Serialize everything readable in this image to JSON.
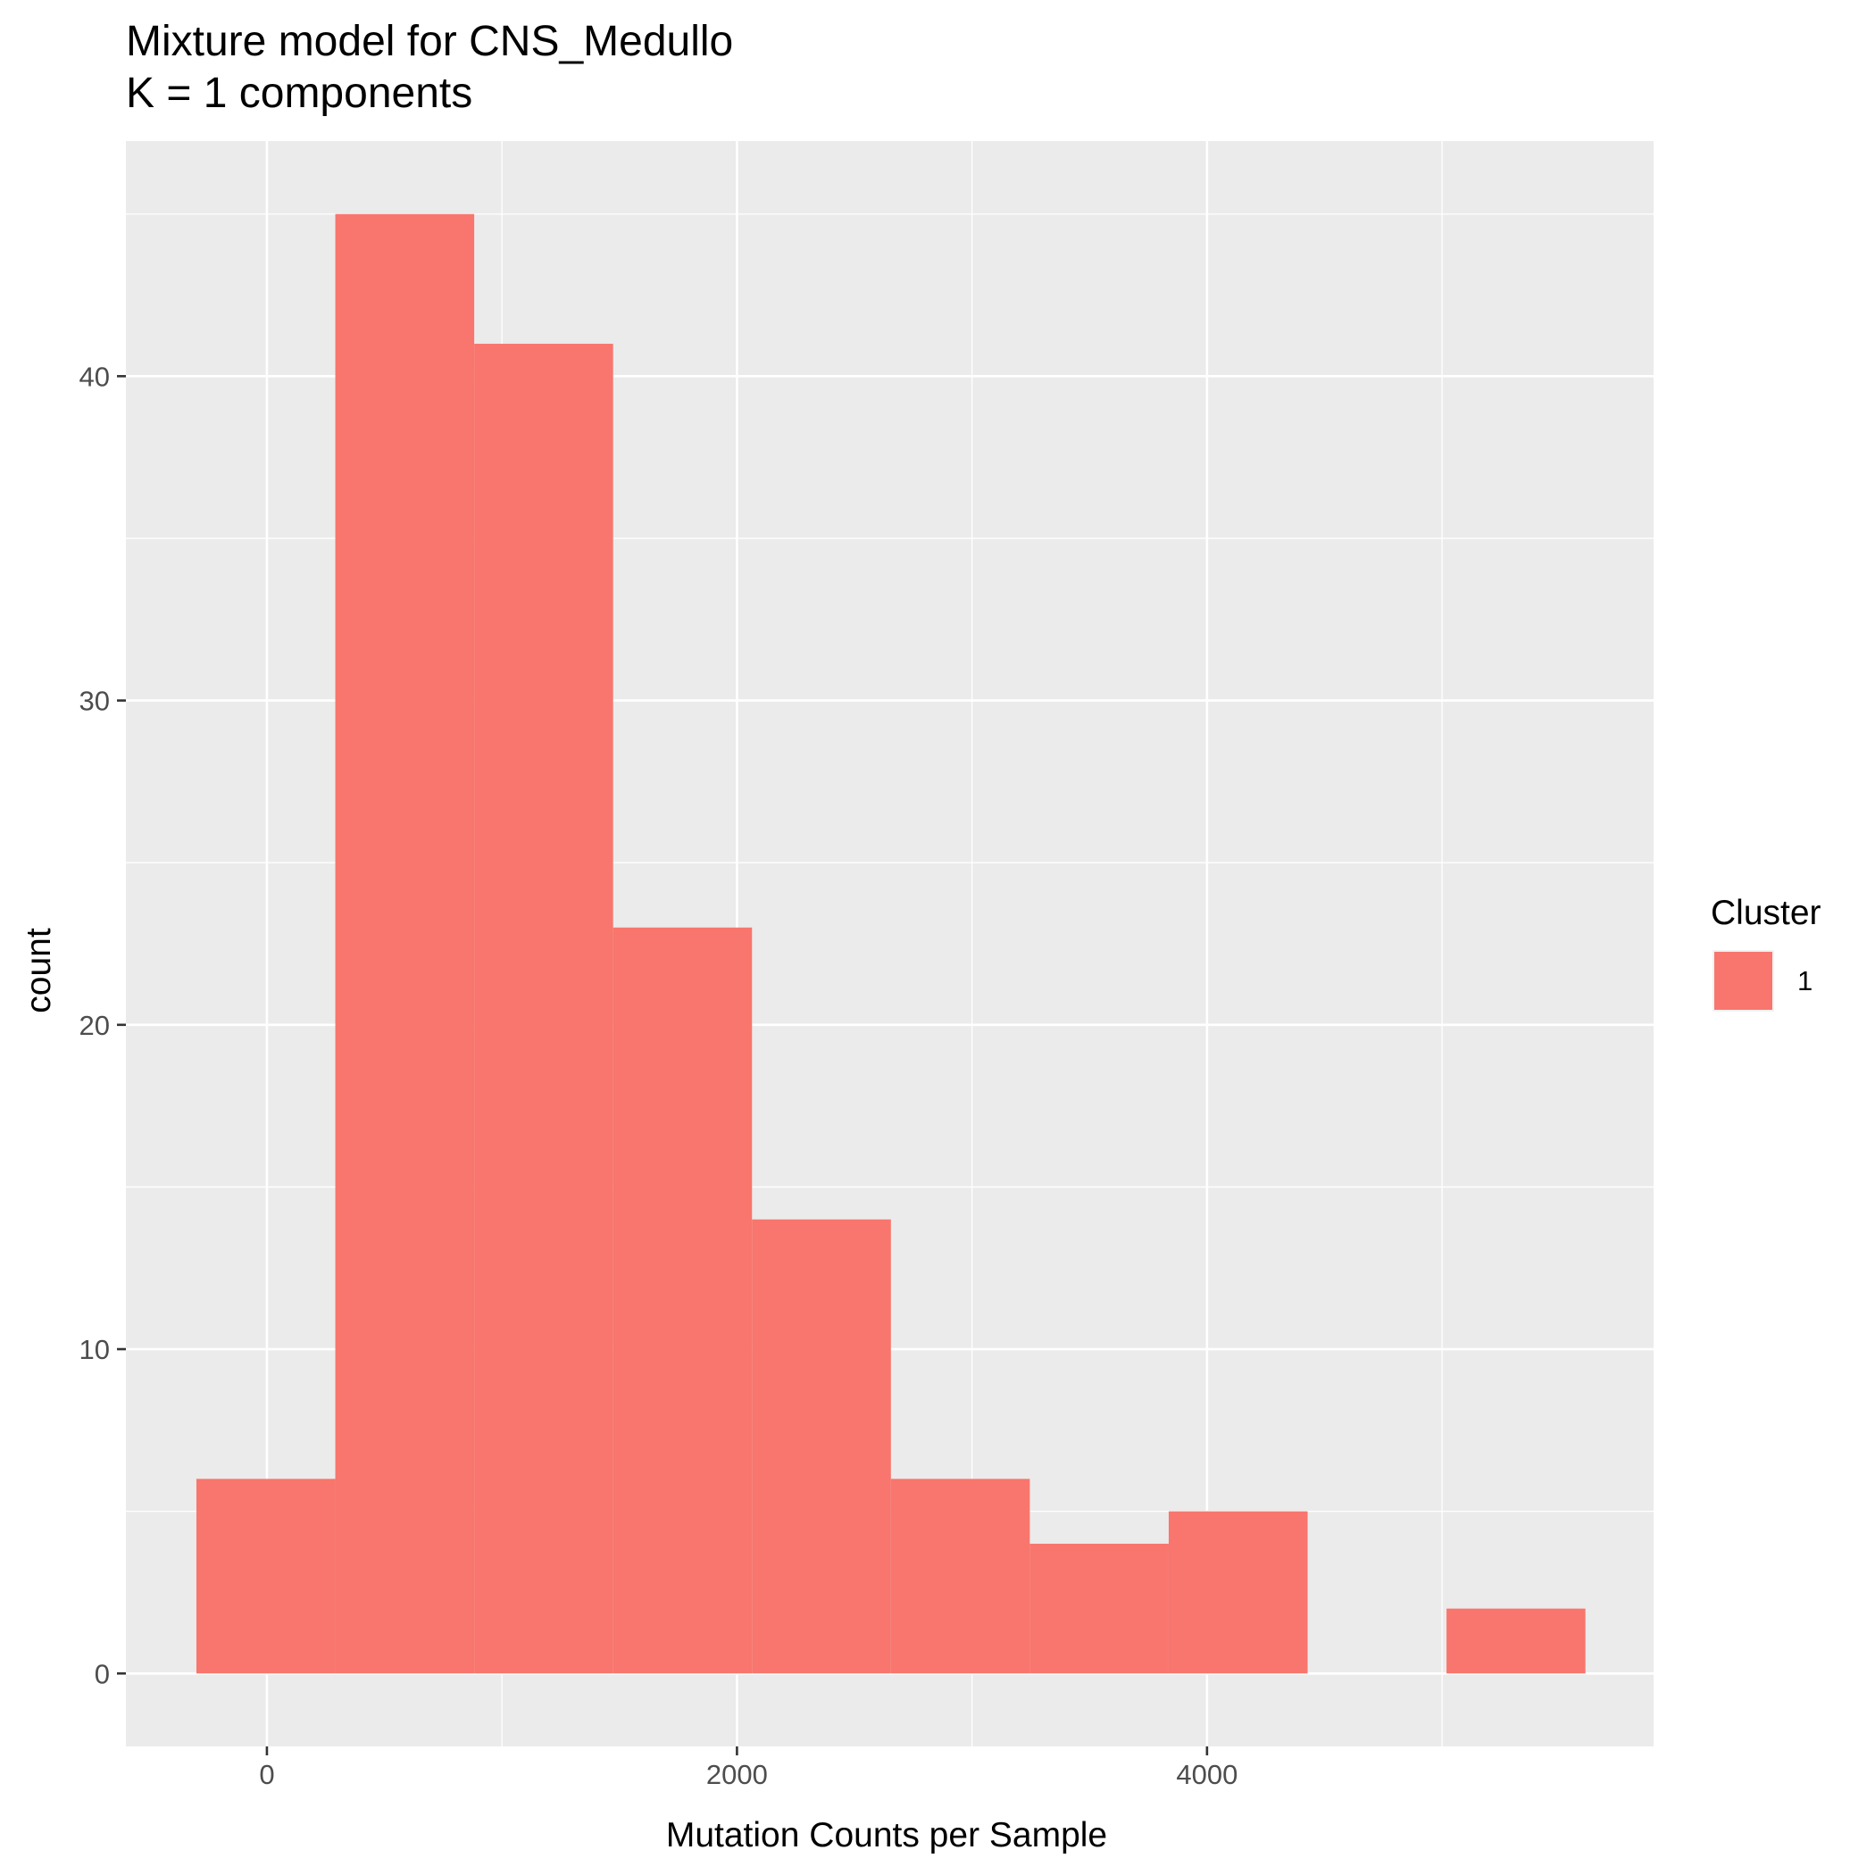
{
  "chart_data": {
    "type": "bar",
    "title": "Mixture model for CNS_Medullo",
    "subtitle": "K = 1 components",
    "xlabel": "Mutation Counts per Sample",
    "ylabel": "count",
    "xlim": [
      -600,
      5900
    ],
    "ylim": [
      -2.25,
      47.25
    ],
    "x_ticks": [
      0,
      2000,
      4000
    ],
    "y_ticks": [
      0,
      10,
      20,
      30,
      40
    ],
    "grid": true,
    "legend": {
      "title": "Cluster",
      "position": "right",
      "entries": [
        {
          "label": "1",
          "color": "#F8766D"
        }
      ]
    },
    "bin_width": 591,
    "series": [
      {
        "name": "1",
        "color": "#F8766D",
        "bins": [
          {
            "x0": -300,
            "x1": 291,
            "count": 6
          },
          {
            "x0": 291,
            "x1": 882,
            "count": 45
          },
          {
            "x0": 882,
            "x1": 1473,
            "count": 41
          },
          {
            "x0": 1473,
            "x1": 2064,
            "count": 23
          },
          {
            "x0": 2064,
            "x1": 2655,
            "count": 14
          },
          {
            "x0": 2655,
            "x1": 3246,
            "count": 6
          },
          {
            "x0": 3246,
            "x1": 3837,
            "count": 4
          },
          {
            "x0": 3837,
            "x1": 4428,
            "count": 5
          },
          {
            "x0": 4428,
            "x1": 5019,
            "count": 0
          },
          {
            "x0": 5019,
            "x1": 5610,
            "count": 2
          }
        ]
      }
    ]
  }
}
